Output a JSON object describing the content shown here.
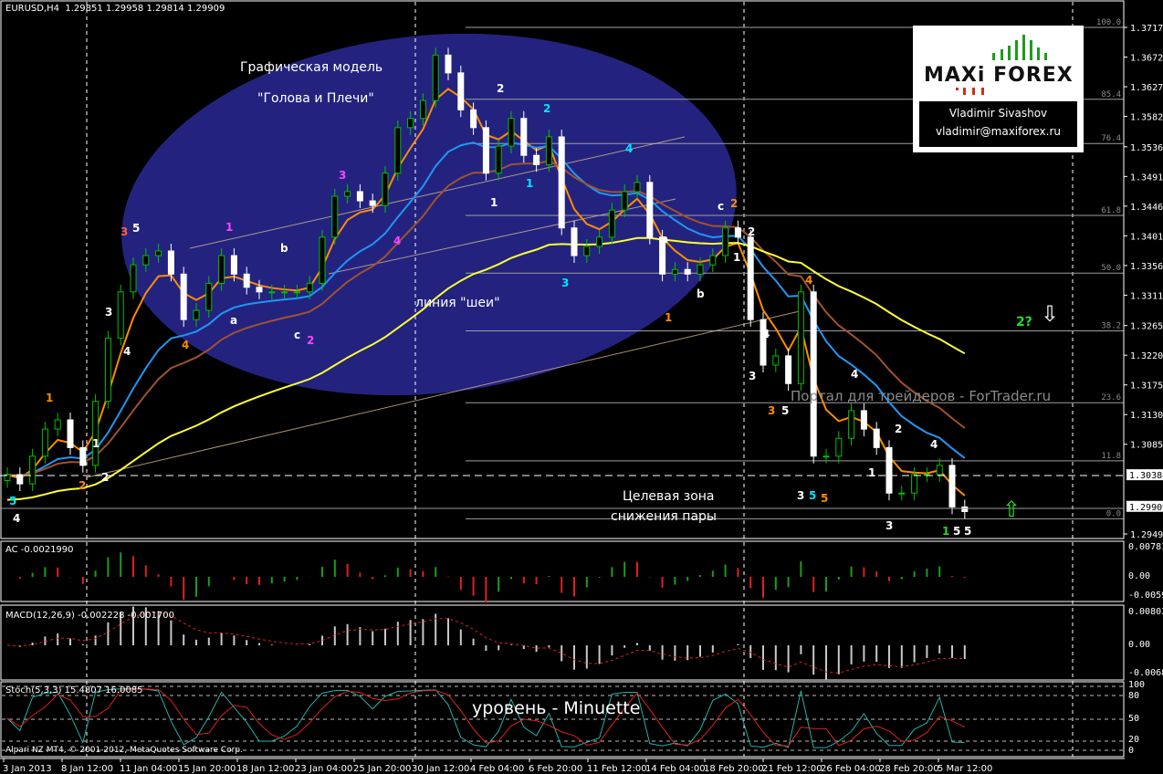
{
  "header": {
    "symbol": "EURUSD,H4",
    "ohlc": "1.29851 1.29958 1.29814 1.29909"
  },
  "chart_data": {
    "type": "candlestick",
    "title": "EURUSD,H4",
    "first_open": 1.303,
    "closes": [
      1.3039,
      1.3025,
      1.3067,
      1.3108,
      1.3122,
      1.308,
      1.3053,
      1.315,
      1.3246,
      1.3316,
      1.3357,
      1.3371,
      1.3378,
      1.3343,
      1.3274,
      1.3288,
      1.3329,
      1.3371,
      1.3343,
      1.3323,
      1.3316,
      1.3316,
      1.3316,
      1.3316,
      1.3329,
      1.3399,
      1.3461,
      1.3468,
      1.3454,
      1.3447,
      1.3496,
      1.3565,
      1.3579,
      1.3606,
      1.3675,
      1.3648,
      1.3592,
      1.3565,
      1.3496,
      1.3537,
      1.3579,
      1.3523,
      1.3509,
      1.3551,
      1.3413,
      1.3371,
      1.3385,
      1.3399,
      1.344,
      1.3468,
      1.3482,
      1.3399,
      1.3343,
      1.335,
      1.3343,
      1.3357,
      1.3371,
      1.3413,
      1.3399,
      1.3274,
      1.3205,
      1.3219,
      1.3177,
      1.3316,
      1.3067,
      1.3067,
      1.3094,
      1.3136,
      1.3108,
      1.308,
      1.3011,
      1.3011,
      1.3039,
      1.3039,
      1.3053,
      1.299,
      1.2983
    ],
    "ylim": [
      1.293,
      1.376
    ],
    "price_ticks": [
      "1.37170",
      "1.36720",
      "1.36270",
      "1.35820",
      "1.35360",
      "1.34910",
      "1.34460",
      "1.34010",
      "1.33560",
      "1.33110",
      "1.32650",
      "1.32200",
      "1.31750",
      "1.31300",
      "1.30850",
      "1.29490"
    ],
    "highlighted_prices": [
      "1.30388",
      "1.29909"
    ],
    "fib_levels": [
      {
        "label": "100.0",
        "price": 1.3717
      },
      {
        "label": "85.4",
        "price": 1.3608
      },
      {
        "label": "76.4",
        "price": 1.3541
      },
      {
        "label": "61.8",
        "price": 1.3432
      },
      {
        "label": "50.0",
        "price": 1.33445
      },
      {
        "label": "38.2",
        "price": 1.3257
      },
      {
        "label": "23.6",
        "price": 1.3148
      },
      {
        "label": "11.8",
        "price": 1.306
      },
      {
        "label": "0.0",
        "price": 1.2972
      }
    ],
    "x_ticks": [
      "3 Jan 2013",
      "8 Jan 12:00",
      "11 Jan 04:00",
      "15 Jan 20:00",
      "18 Jan 12:00",
      "23 Jan 04:00",
      "25 Jan 20:00",
      "30 Jan 12:00",
      "4 Feb 04:00",
      "6 Feb 20:00",
      "11 Feb 12:00",
      "14 Feb 04:00",
      "18 Feb 20:00",
      "21 Feb 12:00",
      "26 Feb 04:00",
      "28 Feb 20:00",
      "5 Mar 12:00"
    ],
    "moving_averages": [
      {
        "name": "fast",
        "period": 4,
        "color": "#ff8c00"
      },
      {
        "name": "medium",
        "period": 12,
        "color": "#2196f3"
      },
      {
        "name": "slow",
        "period": 18,
        "color": "#a0522d"
      },
      {
        "name": "long",
        "period": 45,
        "color": "#ffff33"
      }
    ],
    "colors": {
      "bull": "#00c000",
      "bear": "#ffffff",
      "ellipse": "#23237f",
      "grid": "#ffffff",
      "fib": "#9e9e9e"
    }
  },
  "indicators": {
    "ac": {
      "label": "AC -0.0021990",
      "max": "0.007811",
      "zero": "0.00",
      "min": "-0.00593"
    },
    "macd": {
      "label": "MACD(12,26,9) -0.002228 -0.001700",
      "max": "0.008031",
      "zero": "0.00",
      "min": "-0.006821"
    },
    "stoch": {
      "label": "Stoch(5,3,3) 15.4807 16.0085",
      "levels": [
        "100",
        "80",
        "50",
        "20",
        "0"
      ]
    }
  },
  "annotations": {
    "title1": "Графическая модель",
    "title2": "\"Голова и Плечи\"",
    "neck": "линия \"шеи\"",
    "target1": "Целевая зона",
    "target2": "снижения пары",
    "level": "уровень - Minuette",
    "portal": "Портал для трейдеров - ForTrader.ru",
    "copyright": "Alpari NZ MT4, © 2001-2012, MetaQuotes Software Corp.",
    "question": "2?",
    "waves": [
      "5",
      "4",
      "1",
      "2",
      "1",
      "2",
      "3",
      "4",
      "3",
      "5",
      "4",
      "a",
      "1",
      "b",
      "c",
      "2",
      "3",
      "4",
      "2",
      "2",
      "1",
      "1",
      "4",
      "3",
      "1",
      "a",
      "b",
      "c",
      "2",
      "1",
      "2",
      "4",
      "4",
      "3",
      "3",
      "5",
      "4",
      "2",
      "1",
      "3",
      "5",
      "5",
      "3",
      "4",
      "1",
      "5",
      "5"
    ]
  },
  "logo": {
    "brand_left": "MAXi",
    "brand_right": "FOREX",
    "name": "Vladimir Sivashov",
    "email": "vladimir@maxiforex.ru"
  }
}
